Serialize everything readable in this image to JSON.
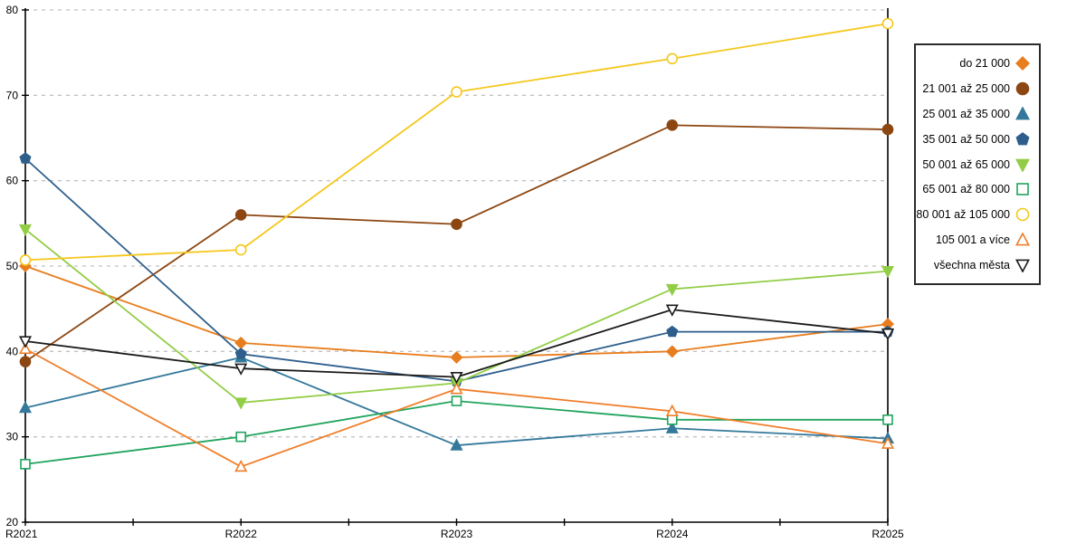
{
  "chart_data": {
    "type": "line",
    "title": "",
    "xlabel": "",
    "ylabel": "",
    "x": [
      "R2021",
      "R2022",
      "R2023",
      "R2024",
      "R2025"
    ],
    "ylim": [
      20,
      80
    ],
    "yticks": [
      20,
      30,
      40,
      50,
      60,
      70,
      80
    ],
    "grid": "horizontal-dashed",
    "gridline_color": "#c2c2c2",
    "axis_color": "#000000",
    "background": "#ffffff",
    "legend_position": "right-outside-box",
    "series": [
      {
        "name": "do 21 000",
        "color": "#e87d1e",
        "marker": "diamond",
        "filled": true,
        "values": [
          50.0,
          41.0,
          39.3,
          40.0,
          43.2
        ]
      },
      {
        "name": "21 001 až 25 000",
        "color": "#8c4611",
        "marker": "circle",
        "filled": true,
        "values": [
          38.8,
          56.0,
          54.9,
          66.5,
          66.0
        ]
      },
      {
        "name": "25 001 až 35 000",
        "color": "#34799b",
        "marker": "triangle-up",
        "filled": true,
        "values": [
          33.4,
          39.3,
          29.0,
          31.0,
          29.8
        ]
      },
      {
        "name": "35 001 až 50 000",
        "color": "#2e5e8c",
        "marker": "pentagon",
        "filled": true,
        "values": [
          62.6,
          39.7,
          36.5,
          42.3,
          42.3
        ]
      },
      {
        "name": "50 001 až 65 000",
        "color": "#92cd46",
        "marker": "triangle-down",
        "filled": true,
        "values": [
          54.3,
          34.0,
          36.3,
          47.3,
          49.4
        ]
      },
      {
        "name": "65 001 až 80 000",
        "color": "#21a45d",
        "marker": "square",
        "filled": false,
        "values": [
          26.8,
          30.0,
          34.2,
          32.0,
          32.0
        ]
      },
      {
        "name": "80 001 až 105 000",
        "color": "#f5c71a",
        "marker": "circle",
        "filled": false,
        "values": [
          50.7,
          51.9,
          70.4,
          74.3,
          78.4
        ]
      },
      {
        "name": "105 001 a více",
        "color": "#f07d28",
        "marker": "triangle-up",
        "filled": false,
        "values": [
          40.3,
          26.5,
          35.6,
          33.0,
          29.2
        ]
      },
      {
        "name": "všechna města",
        "color": "#1a1a1a",
        "marker": "triangle-down",
        "filled": false,
        "values": [
          41.2,
          38.0,
          37.0,
          44.9,
          42.1
        ]
      }
    ]
  },
  "layout_values": {
    "tick_font_size": "12",
    "marker_radius": 6
  }
}
